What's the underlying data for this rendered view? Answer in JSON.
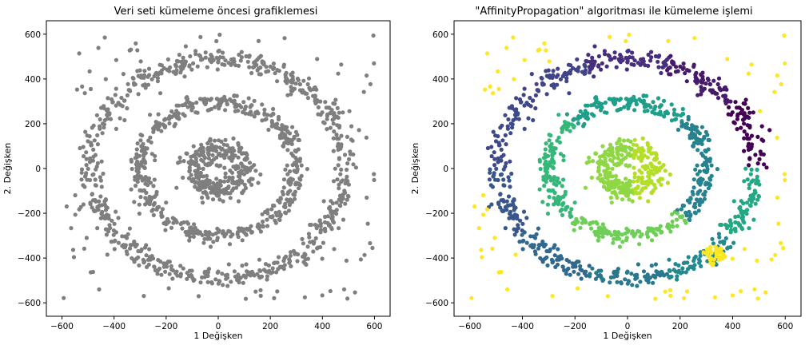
{
  "chart_data": [
    {
      "type": "scatter",
      "title": "Veri seti kümeleme öncesi grafiklemesi",
      "xlabel": "1 Değişken",
      "ylabel": "2. Değişken",
      "xlim": [
        -660,
        660
      ],
      "ylim": [
        -660,
        660
      ],
      "xticks": [
        -600,
        -400,
        -200,
        0,
        200,
        400,
        600
      ],
      "yticks": [
        600,
        400,
        200,
        0,
        -200,
        -400,
        -600
      ],
      "colors": {
        "points": "#7f7f7f"
      },
      "structure": {
        "rings": [
          {
            "center": [
              0,
              0
            ],
            "radius": 100,
            "spread": 55,
            "count": 300
          },
          {
            "center": [
              0,
              0
            ],
            "radius": 300,
            "spread": 40,
            "count": 500
          },
          {
            "center": [
              0,
              0
            ],
            "radius": 490,
            "spread": 45,
            "count": 700
          }
        ],
        "noise": {
          "count": 70,
          "range": [
            -600,
            600
          ]
        }
      }
    },
    {
      "type": "scatter",
      "title": "\"AffinityPropagation\" algoritması ile kümeleme işlemi",
      "xlabel": "1 Değişken",
      "ylabel": "2. Değişken",
      "xlim": [
        -660,
        660
      ],
      "ylim": [
        -660,
        660
      ],
      "xticks": [
        -600,
        -400,
        -200,
        0,
        200,
        400,
        600
      ],
      "yticks": [
        600,
        400,
        200,
        0,
        -200,
        -400,
        -600
      ],
      "colors": {
        "colormap": [
          "#440154",
          "#482878",
          "#3e4989",
          "#31688e",
          "#26828e",
          "#1f9e89",
          "#35b779",
          "#6ece58",
          "#b5de2b",
          "#fde725"
        ]
      },
      "structure": {
        "rings": [
          {
            "center": [
              0,
              0
            ],
            "radius": 100,
            "spread": 55,
            "count": 300
          },
          {
            "center": [
              0,
              0
            ],
            "radius": 300,
            "spread": 40,
            "count": 500
          },
          {
            "center": [
              0,
              0
            ],
            "radius": 490,
            "spread": 45,
            "count": 700
          }
        ],
        "noise": {
          "count": 70,
          "range": [
            -600,
            600
          ]
        },
        "dense_patch": {
          "center": [
            330,
            -390
          ],
          "radius": 45,
          "count": 40
        }
      }
    }
  ]
}
